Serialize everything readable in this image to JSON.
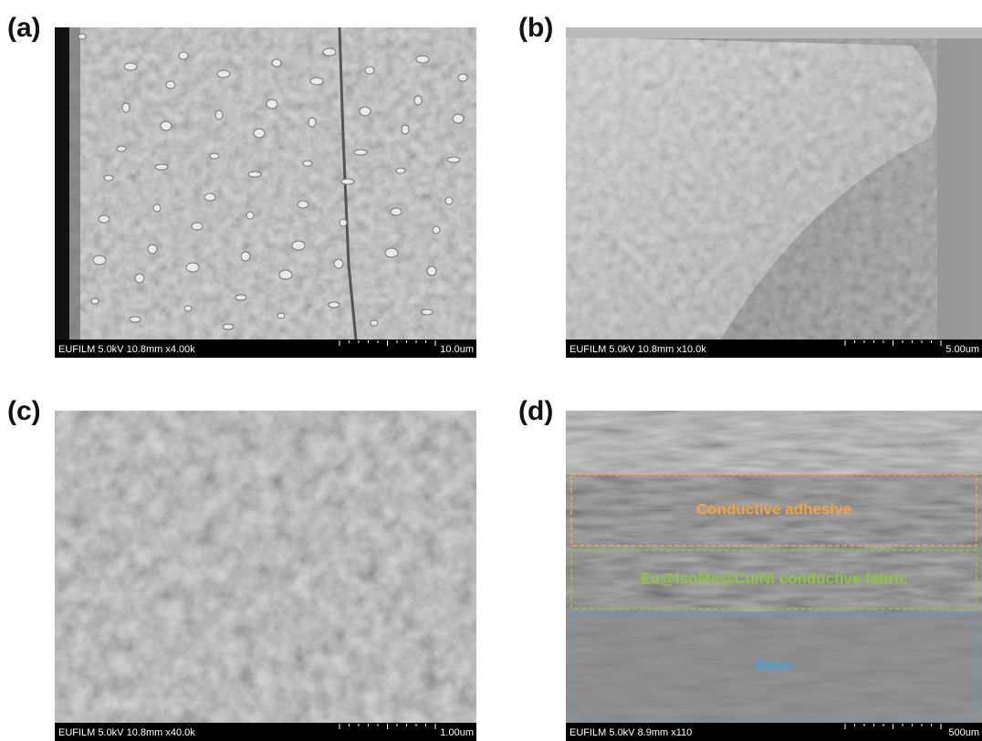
{
  "panels": [
    {
      "label": "(a)",
      "info": "EUFILM 5.0kV 10.8mm x4.00k",
      "scale": "10.0um"
    },
    {
      "label": "(b)",
      "info": "EUFILM 5.0kV 10.8mm x10.0k",
      "scale": "5.00um"
    },
    {
      "label": "(c)",
      "info": "EUFILM 5.0kV 10.8mm x40.0k",
      "scale": "1.00um"
    },
    {
      "label": "(d)",
      "info": "EUFILM 5.0kV 8.9mm x110",
      "scale": "500um",
      "layers": [
        "Conductive adhesive",
        "Eu@IsoMe@Cu/Ni conductive fabric",
        "Base"
      ]
    }
  ]
}
